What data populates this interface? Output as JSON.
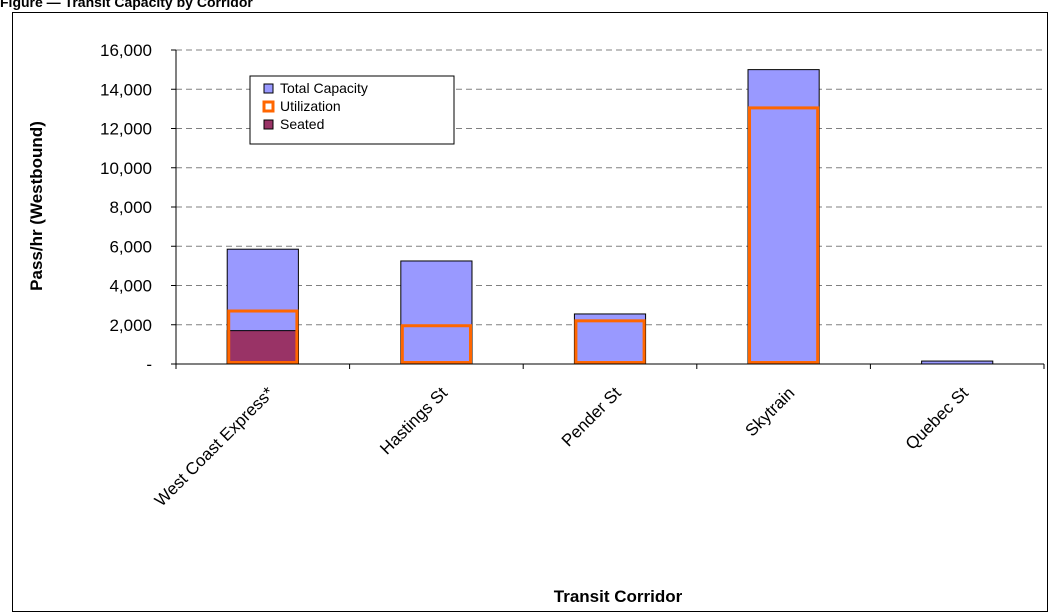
{
  "page": {
    "title": "Figure — Transit Capacity by Corridor"
  },
  "chart_data": {
    "type": "bar",
    "title": "",
    "xlabel": "Transit Corridor",
    "ylabel": "Pass/hr (Westbound)",
    "ylim": [
      0,
      16000
    ],
    "yticks": [
      0,
      2000,
      4000,
      6000,
      8000,
      10000,
      12000,
      14000,
      16000
    ],
    "ytick_labels": [
      "-",
      "2,000",
      "4,000",
      "6,000",
      "8,000",
      "10,000",
      "12,000",
      "14,000",
      "16,000"
    ],
    "grid": true,
    "legend_position": "top-left",
    "categories": [
      "West Coast Express*",
      "Hastings St",
      "Pender St",
      "Skytrain",
      "Quebec St"
    ],
    "series": [
      {
        "name": "Total Capacity",
        "values": [
          5850,
          5250,
          2550,
          15000,
          150
        ],
        "color": "#9999ff"
      },
      {
        "name": "Utilization",
        "values": [
          2700,
          1950,
          2200,
          13050,
          0
        ],
        "color": "#ff6600"
      },
      {
        "name": "Seated",
        "values": [
          1700,
          0,
          0,
          0,
          0
        ],
        "color": "#993366"
      }
    ]
  }
}
